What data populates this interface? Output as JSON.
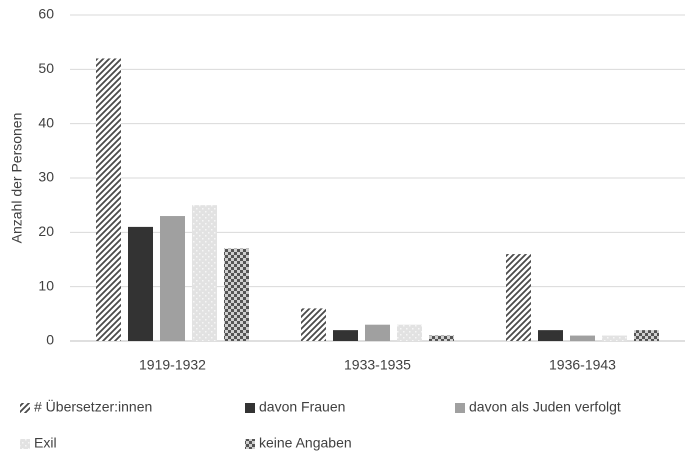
{
  "chart_data": {
    "type": "bar",
    "ylabel": "Anzahl der Personen",
    "categories": [
      "1919-1932",
      "1933-1935",
      "1936-1943"
    ],
    "series": [
      {
        "name": "# Übersetzer:innen",
        "color": "#4a4a4a",
        "pattern": "hatch",
        "values": [
          52,
          6,
          16
        ]
      },
      {
        "name": "davon Frauen",
        "color": "#333333",
        "pattern": "solid",
        "values": [
          21,
          2,
          2
        ]
      },
      {
        "name": "davon als Juden verfolgt",
        "color": "#a0a0a0",
        "pattern": "solid",
        "values": [
          23,
          3,
          1
        ]
      },
      {
        "name": "Exil",
        "color": "#e2e2e2",
        "pattern": "dots",
        "values": [
          25,
          3,
          1
        ]
      },
      {
        "name": "keine Angaben",
        "color": "#555555",
        "pattern": "checker",
        "values": [
          17,
          1,
          2
        ]
      }
    ],
    "ylim": [
      0,
      60
    ],
    "yticks": [
      0,
      10,
      20,
      30,
      40,
      50,
      60
    ],
    "grid": true,
    "legend": "bottom"
  }
}
